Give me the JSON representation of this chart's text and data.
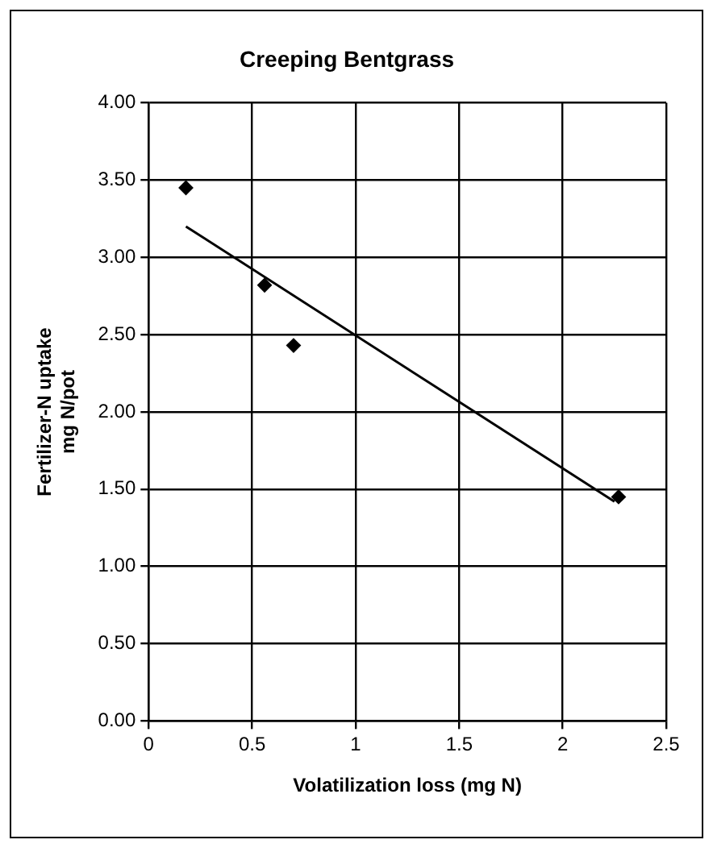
{
  "chart_data": {
    "type": "scatter",
    "title": "Creeping Bentgrass",
    "xlabel": "Volatilization loss (mg N)",
    "ylabel": "Fertilizer-N uptake\nmg N/pot",
    "series": [
      {
        "type": "scatter",
        "color": "#000000",
        "x": [
          0.18,
          0.56,
          0.7,
          2.27
        ],
        "values": [
          3.45,
          2.82,
          2.43,
          1.45
        ],
        "marker": "diamond"
      },
      {
        "type": "line",
        "color": "#000000",
        "x": [
          0.18,
          2.25
        ],
        "values": [
          3.2,
          1.42
        ],
        "marker": "none"
      }
    ],
    "xlim": [
      0,
      2.5
    ],
    "xticks": [
      0,
      0.5,
      1,
      1.5,
      2,
      2.5
    ],
    "ylim": [
      0,
      4
    ],
    "yticks": [
      {
        "value": 0,
        "label": "0.00"
      },
      {
        "value": 0.5,
        "label": "0.50"
      },
      {
        "value": 1,
        "label": "1.00"
      },
      {
        "value": 1.5,
        "label": "1.50"
      },
      {
        "value": 2,
        "label": "2.00"
      },
      {
        "value": 2.5,
        "label": "2.50"
      },
      {
        "value": 3,
        "label": "3.00"
      },
      {
        "value": 3.5,
        "label": "3.50"
      },
      {
        "value": 4,
        "label": "4.00"
      }
    ],
    "grid": true,
    "legend": false
  }
}
